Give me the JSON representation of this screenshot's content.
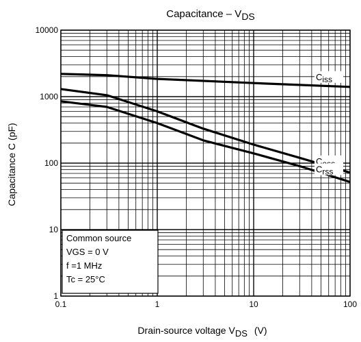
{
  "chart_data": {
    "type": "line",
    "title": "Capacitance – V",
    "title_sub": "DS",
    "xlabel": "Drain-source voltage   V",
    "xlabel_sub": "DS",
    "xlabel_unit": "(V)",
    "ylabel": "Capacitance   C   (pF)",
    "x_scale": "log",
    "y_scale": "log",
    "xlim": [
      0.1,
      100
    ],
    "ylim": [
      1,
      10000
    ],
    "grid": true,
    "x_ticks": [
      {
        "value": 0.1,
        "label": "0.1"
      },
      {
        "value": 1,
        "label": "1"
      },
      {
        "value": 10,
        "label": "10"
      },
      {
        "value": 100,
        "label": "100"
      }
    ],
    "y_ticks": [
      {
        "value": 1,
        "label": "1"
      },
      {
        "value": 10,
        "label": "10"
      },
      {
        "value": 100,
        "label": "100"
      },
      {
        "value": 1000,
        "label": "1000"
      },
      {
        "value": 10000,
        "label": "10000"
      }
    ],
    "series": [
      {
        "name": "Ciss",
        "name_main": "C",
        "name_sub": "iss",
        "color": "#000000",
        "points": [
          [
            0.1,
            2200
          ],
          [
            0.3,
            2100
          ],
          [
            1,
            1850
          ],
          [
            10,
            1600
          ],
          [
            100,
            1400
          ]
        ]
      },
      {
        "name": "Coss",
        "name_main": "C",
        "name_sub": "oss",
        "color": "#000000",
        "points": [
          [
            0.1,
            1300
          ],
          [
            0.3,
            1050
          ],
          [
            1,
            600
          ],
          [
            3,
            330
          ],
          [
            10,
            190
          ],
          [
            30,
            120
          ],
          [
            100,
            72
          ]
        ]
      },
      {
        "name": "Crss",
        "name_main": "C",
        "name_sub": "rss",
        "color": "#000000",
        "points": [
          [
            0.1,
            850
          ],
          [
            0.3,
            700
          ],
          [
            1,
            400
          ],
          [
            3,
            220
          ],
          [
            10,
            140
          ],
          [
            30,
            90
          ],
          [
            100,
            52
          ]
        ]
      }
    ],
    "annotation": {
      "lines": [
        "Common source",
        "VGS = 0 V",
        "f =1 MHz",
        "Tc = 25°C"
      ]
    }
  }
}
